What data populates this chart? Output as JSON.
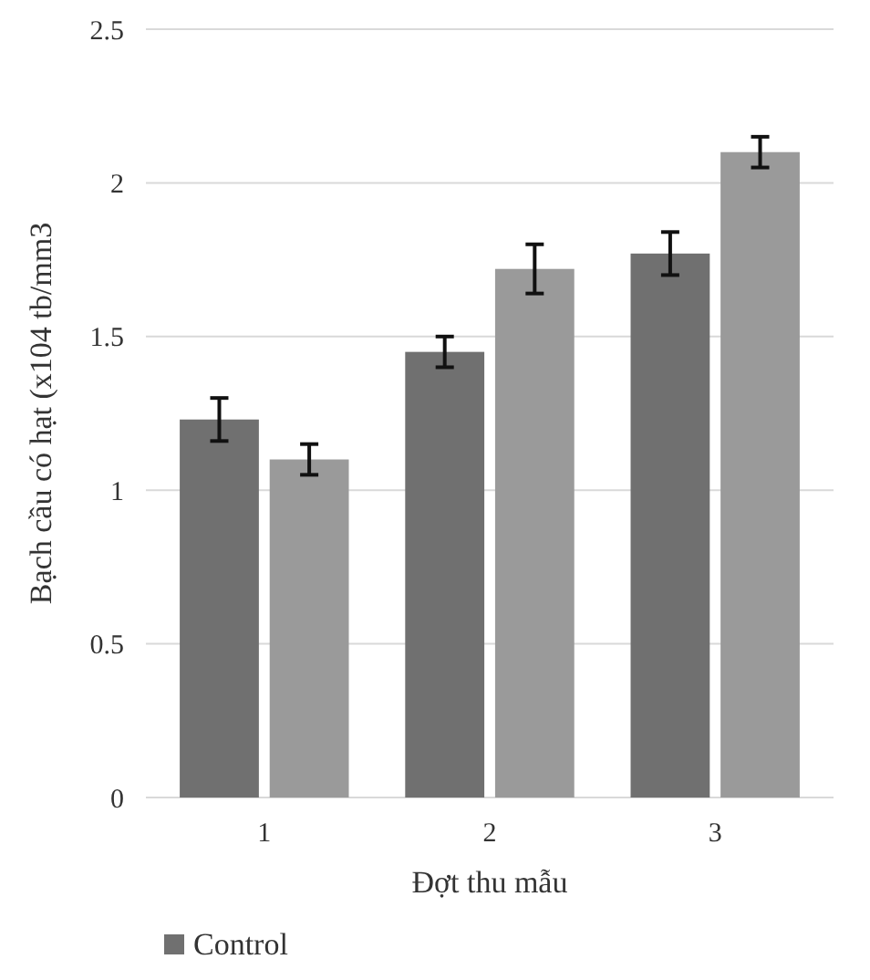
{
  "chart_data": {
    "type": "bar",
    "xlabel": "Đợt thu mẫu",
    "ylabel": "Bạch cầu có hạt (x104 tb/mm3",
    "categories": [
      "1",
      "2",
      "3"
    ],
    "series": [
      {
        "name": "Control",
        "color": "#707070",
        "values": [
          1.23,
          1.45,
          1.77
        ],
        "errors": [
          0.07,
          0.05,
          0.07
        ]
      },
      {
        "color": "#9a9a9a",
        "values": [
          1.1,
          1.72,
          2.1
        ],
        "errors": [
          0.05,
          0.08,
          0.05
        ]
      }
    ],
    "ylim": [
      0,
      2.5
    ],
    "yticks": [
      0,
      {
        "value": 0.5,
        "label": "0.5"
      },
      1,
      {
        "value": 1.5,
        "label": "1.5"
      },
      2,
      {
        "value": 2.5,
        "label": "2.5"
      }
    ],
    "grid": "y",
    "legend": "bottom"
  }
}
